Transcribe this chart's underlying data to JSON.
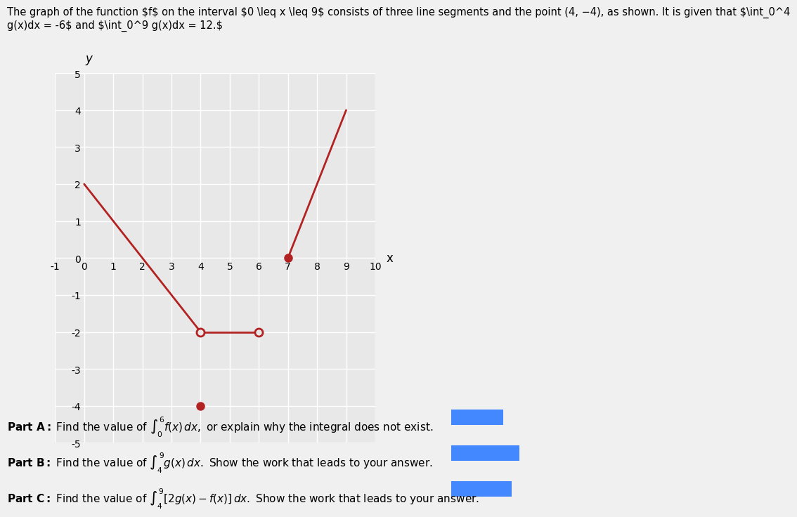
{
  "background_color": "#f0f0f0",
  "plot_bg_color": "#e8e8e8",
  "title_text": "The graph of the function ƒ on the interval 0 ≤ x ≤ 9 consists of three line segments and the point (4, −4), as shown. It is given that ∫₀⁴ g(x)dx = −6 and ∫₀⁹ g(x)dx = 12.",
  "xlim": [
    -1,
    10
  ],
  "ylim": [
    -5,
    5
  ],
  "xticks": [
    -1,
    0,
    1,
    2,
    3,
    4,
    5,
    6,
    7,
    8,
    9,
    10
  ],
  "yticks": [
    -5,
    -4,
    -3,
    -2,
    -1,
    0,
    1,
    2,
    3,
    4,
    5
  ],
  "line_color": "#b22222",
  "line_width": 2.0,
  "segments": [
    {
      "x": [
        0,
        4
      ],
      "y": [
        2,
        -2
      ],
      "open_start": false,
      "open_end": true
    },
    {
      "x": [
        4,
        6
      ],
      "y": [
        -2,
        -2
      ],
      "open_start": true,
      "open_end": true
    },
    {
      "x": [
        7,
        9
      ],
      "y": [
        0,
        4
      ],
      "open_start": false,
      "open_end": false
    }
  ],
  "filled_points": [
    [
      4,
      -4
    ],
    [
      7,
      0
    ]
  ],
  "open_points": [
    [
      4,
      -2
    ],
    [
      6,
      -2
    ]
  ],
  "marker_size": 8,
  "open_marker_size": 8,
  "xlabel": "x",
  "ylabel": "y",
  "part_a": "Part A: Find the value of $\\int_0^6 f(x)\\,dx,$ or explain why the integral does not exist.",
  "part_b": "Part B: Find the value of $\\int_4^9 g(x)\\,dx.$ Show the work that leads to your answer.",
  "part_c": "Part C: Find the value of $\\int_4^9 [2g(x)-f(x)]\\,dx.$ Show the work that leads to your answer.",
  "grid_color": "#ffffff",
  "grid_linewidth": 1.0
}
